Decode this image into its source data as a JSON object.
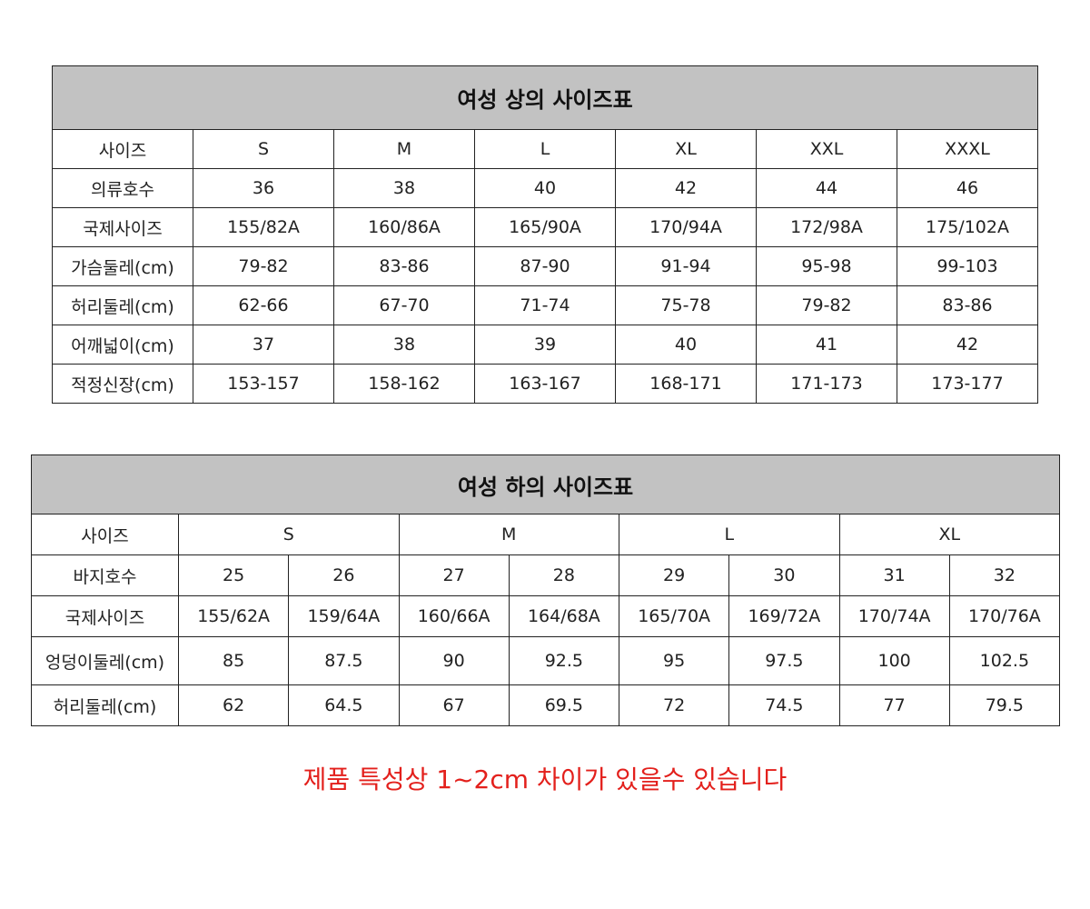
{
  "top_table": {
    "title": "여성 상의 사이즈표",
    "rows": [
      [
        "사이즈",
        "S",
        "M",
        "L",
        "XL",
        "XXL",
        "XXXL"
      ],
      [
        "의류호수",
        "36",
        "38",
        "40",
        "42",
        "44",
        "46"
      ],
      [
        "국제사이즈",
        "155/82A",
        "160/86A",
        "165/90A",
        "170/94A",
        "172/98A",
        "175/102A"
      ],
      [
        "가슴둘레(cm)",
        "79-82",
        "83-86",
        "87-90",
        "91-94",
        "95-98",
        "99-103"
      ],
      [
        "허리둘레(cm)",
        "62-66",
        "67-70",
        "71-74",
        "75-78",
        "79-82",
        "83-86"
      ],
      [
        "어깨넓이(cm)",
        "37",
        "38",
        "39",
        "40",
        "41",
        "42"
      ],
      [
        "적정신장(cm)",
        "153-157",
        "158-162",
        "163-167",
        "168-171",
        "171-173",
        "173-177"
      ]
    ]
  },
  "bottom_table": {
    "title": "여성 하의 사이즈표",
    "size_row": [
      "사이즈",
      "S",
      "M",
      "L",
      "XL"
    ],
    "rows": [
      [
        "바지호수",
        "25",
        "26",
        "27",
        "28",
        "29",
        "30",
        "31",
        "32"
      ],
      [
        "국제사이즈",
        "155/62A",
        "159/64A",
        "160/66A",
        "164/68A",
        "165/70A",
        "169/72A",
        "170/74A",
        "170/76A"
      ],
      [
        "엉덩이둘레(cm)",
        "85",
        "87.5",
        "90",
        "92.5",
        "95",
        "97.5",
        "100",
        "102.5"
      ],
      [
        "허리둘레(cm)",
        "62",
        "64.5",
        "67",
        "69.5",
        "72",
        "74.5",
        "77",
        "79.5"
      ]
    ]
  },
  "note": "제품 특성상 1~2cm 차이가 있을수 있습니다",
  "colors": {
    "header_bg": "#c2c2c2",
    "note": "#e3201c"
  }
}
